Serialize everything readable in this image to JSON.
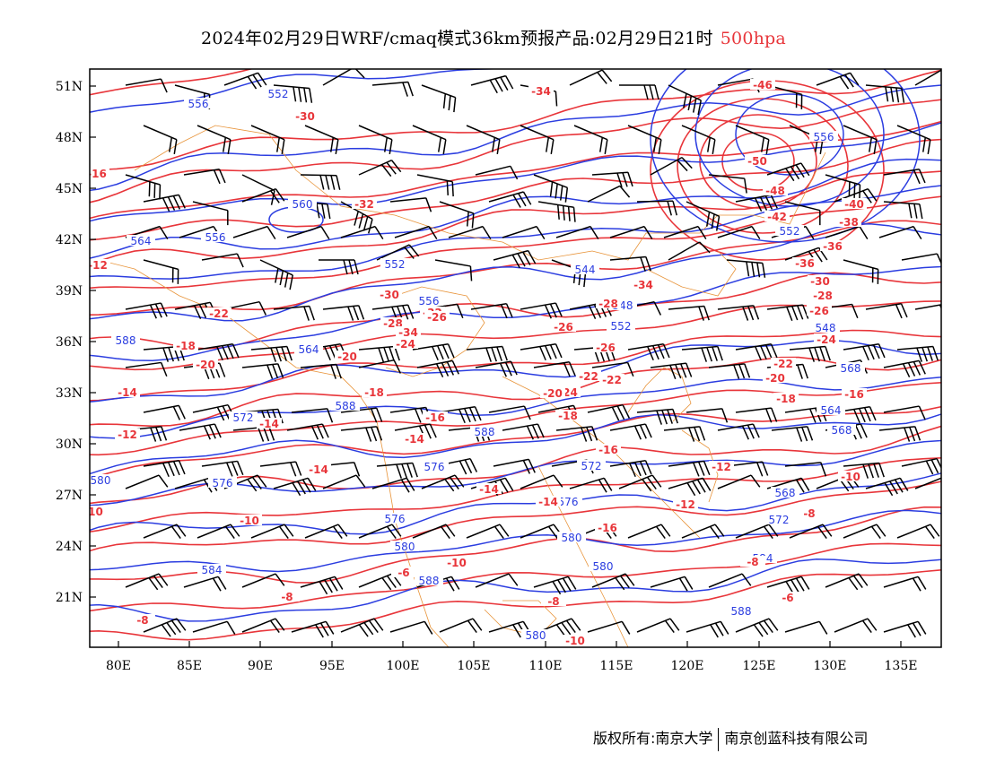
{
  "title": {
    "main": "2024年02月29日WRF/cmaq模式36km预报产品:02月29日21时",
    "level": "500hpa",
    "level_color": "#e8353a"
  },
  "axes": {
    "lat_labels": [
      "51N",
      "48N",
      "45N",
      "42N",
      "39N",
      "36N",
      "33N",
      "30N",
      "27N",
      "24N",
      "21N"
    ],
    "lon_labels": [
      "80E",
      "85E",
      "90E",
      "95E",
      "100E",
      "105E",
      "110E",
      "115E",
      "120E",
      "125E",
      "130E",
      "135E"
    ]
  },
  "colors": {
    "height_contour": "#2b3de0",
    "temperature_contour": "#e8353a",
    "boundary": "#e8943a",
    "wind_barb": "#000000"
  },
  "height_labels": [
    "556",
    "552",
    "556",
    "588",
    "560",
    "564",
    "556",
    "552",
    "556",
    "544",
    "548",
    "552",
    "548",
    "568",
    "568",
    "564",
    "572",
    "588",
    "588",
    "564",
    "580",
    "568",
    "552",
    "576",
    "572",
    "576",
    "580",
    "572",
    "576",
    "580",
    "576",
    "580",
    "584",
    "588",
    "580",
    "584",
    "588"
  ],
  "temperature_labels": [
    "-30",
    "-32",
    "-34",
    "-46",
    "-50",
    "-48",
    "-42",
    "-40",
    "-38",
    "-36",
    "-36",
    "-34",
    "-30",
    "-28",
    "-26",
    "-24",
    "-28",
    "-30",
    "-32",
    "-34",
    "-28",
    "-24",
    "-22",
    "-26",
    "-26",
    "-22",
    "-20",
    "-18",
    "-16",
    "-24",
    "-22",
    "-20",
    "-18",
    "-16",
    "-14",
    "-16",
    "-14",
    "-12",
    "-14",
    "-12",
    "-10",
    "-8",
    "-6",
    "-8",
    "-10",
    "-12",
    "-14",
    "-16",
    "-18",
    "-20",
    "-22",
    "-26",
    "-18",
    "-20",
    "-14",
    "-10",
    "-8",
    "-8",
    "-10",
    "-12",
    "-6",
    "-8",
    "-10",
    "-14",
    "-16"
  ],
  "icons": {
    "wind": "wind-barb-icon"
  },
  "footer": {
    "copyright": "版权所有:南京大学",
    "company": "南京创蓝科技有限公司"
  }
}
